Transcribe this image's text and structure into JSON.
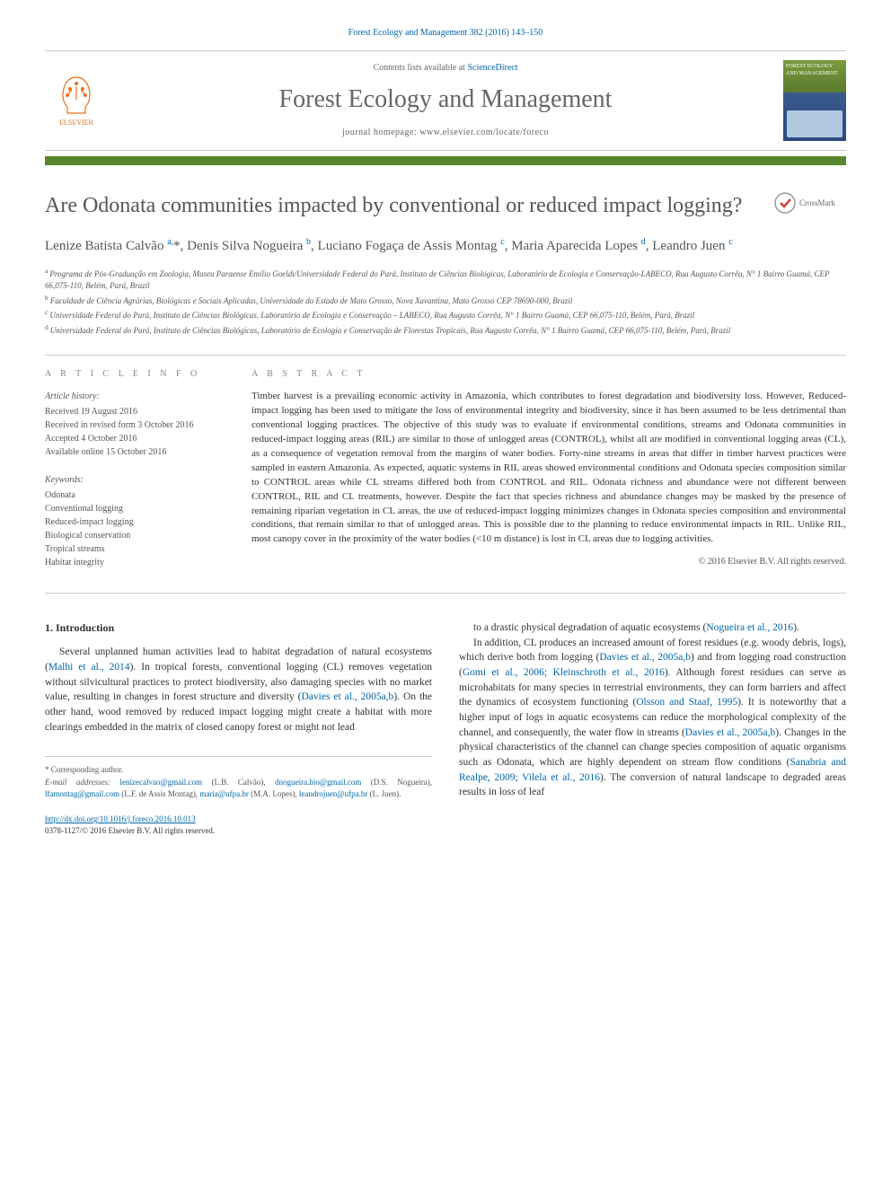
{
  "journal_ref": "Forest Ecology and Management 382 (2016) 143–150",
  "header": {
    "contents_prefix": "Contents lists available at ",
    "contents_link": "ScienceDirect",
    "journal_name": "Forest Ecology and Management",
    "homepage_prefix": "journal homepage: ",
    "homepage_url": "www.elsevier.com/locate/foreco",
    "publisher": "ELSEVIER",
    "cover_title": "FOREST ECOLOGY AND MANAGEMENT"
  },
  "crossmark_label": "CrossMark",
  "title": "Are Odonata communities impacted by conventional or reduced impact logging?",
  "authors_html": "Lenize Batista Calvão <sup>a,</sup>*, Denis Silva Nogueira <sup>b</sup>, Luciano Fogaça de Assis Montag <sup>c</sup>, Maria Aparecida Lopes <sup>d</sup>, Leandro Juen <sup>c</sup>",
  "affiliations": [
    {
      "key": "a",
      "text": "Programa de Pós-Graduação em Zoologia, Museu Paraense Emílio Goeldi/Universidade Federal do Pará, Instituto de Ciências Biológicas, Laboratório de Ecologia e Conservação-LABECO, Rua Augusto Corrêa, N° 1 Bairro Guamá, CEP 66,075-110, Belém, Pará, Brazil"
    },
    {
      "key": "b",
      "text": "Faculdade de Ciência Agrárias, Biológicas e Sociais Aplicadas, Universidade do Estado de Mato Grosso, Nova Xavantina, Mato Grosso CEP 78690-000, Brazil"
    },
    {
      "key": "c",
      "text": "Universidade Federal do Pará, Instituto de Ciências Biológicas, Laboratório de Ecologia e Conservação – LABECO, Rua Augusto Corrêa, N° 1 Bairro Guamá, CEP 66,075-110, Belém, Pará, Brazil"
    },
    {
      "key": "d",
      "text": "Universidade Federal do Pará, Instituto de Ciências Biológicas, Laboratório de Ecologia e Conservação de Florestas Tropicais, Rua Augusto Corrêa, N° 1 Bairro Guamá, CEP 66,075-110, Belém, Pará, Brazil"
    }
  ],
  "info": {
    "heading_info": "A R T I C L E   I N F O",
    "heading_abstract": "A B S T R A C T",
    "history_label": "Article history:",
    "history": [
      "Received 19 August 2016",
      "Received in revised form 3 October 2016",
      "Accepted 4 October 2016",
      "Available online 15 October 2016"
    ],
    "keywords_label": "Keywords:",
    "keywords": [
      "Odonata",
      "Conventional logging",
      "Reduced-impact logging",
      "Biological conservation",
      "Tropical streams",
      "Habitat integrity"
    ]
  },
  "abstract": "Timber harvest is a prevailing economic activity in Amazonia, which contributes to forest degradation and biodiversity loss. However, Reduced-impact logging has been used to mitigate the loss of environmental integrity and biodiversity, since it has been assumed to be less detrimental than conventional logging practices. The objective of this study was to evaluate if environmental conditions, streams and Odonata communities in reduced-impact logging areas (RIL) are similar to those of unlogged areas (CONTROL), whilst all are modified in conventional logging areas (CL), as a consequence of vegetation removal from the margins of water bodies. Forty-nine streams in areas that differ in timber harvest practices were sampled in eastern Amazonia. As expected, aquatic systems in RIL areas showed environmental conditions and Odonata species composition similar to CONTROL areas while CL streams differed both from CONTROL and RIL. Odonata richness and abundance were not different between CONTROL, RIL and CL treatments, however. Despite the fact that species richness and abundance changes may be masked by the presence of remaining riparian vegetation in CL areas, the use of reduced-impact logging minimizes changes in Odonata species composition and environmental conditions, that remain similar to that of unlogged areas. This is possible due to the planning to reduce environmental impacts in RIL. Unlike RIL, most canopy cover in the proximity of the water bodies (<10 m distance) is lost in CL areas due to logging activities.",
  "copyright": "© 2016 Elsevier B.V. All rights reserved.",
  "section1": {
    "heading": "1. Introduction",
    "p1_a": "Several unplanned human activities lead to habitat degradation of natural ecosystems (",
    "p1_c1": "Malhi et al., 2014",
    "p1_b": "). In tropical forests, conventional logging (CL) removes vegetation without silvicultural practices to protect biodiversity, also damaging species with no market value, resulting in changes in forest structure and diversity (",
    "p1_c2": "Davies et al., 2005a,b",
    "p1_c": "). On the other hand, wood removed by reduced impact logging might create a habitat with more clearings embedded in the matrix of closed canopy forest or might not lead",
    "p2_a": "to a drastic physical degradation of aquatic ecosystems (",
    "p2_c1": "Nogueira et al., 2016",
    "p2_b": ").",
    "p3_a": "In addition, CL produces an increased amount of forest residues (e.g. woody debris, logs), which derive both from logging (",
    "p3_c1": "Davies et al., 2005a,b",
    "p3_b": ") and from logging road construction (",
    "p3_c2": "Gomi et al., 2006; Kleinschroth et al., 2016",
    "p3_c": "). Although forest residues can serve as microhabitats for many species in terrestrial environments, they can form barriers and affect the dynamics of ecosystem functioning (",
    "p3_c3": "Olsson and Staaf, 1995",
    "p3_d": "). It is noteworthy that a higher input of logs in aquatic ecosystems can reduce the morphological complexity of the channel, and consequently, the water flow in streams (",
    "p3_c4": "Davies et al., 2005a,b",
    "p3_e": "). Changes in the physical characteristics of the channel can change species composition of aquatic organisms such as Odonata, which are highly dependent on stream flow conditions (",
    "p3_c5": "Sanabria and Realpe, 2009; Vilela et al., 2016",
    "p3_f": "). The conversion of natural landscape to degraded areas results in loss of leaf"
  },
  "footer": {
    "corr": "* Corresponding author.",
    "email_label": "E-mail addresses:",
    "emails": [
      {
        "addr": "lenizecalvao@gmail.com",
        "who": "(L.B. Calvão),"
      },
      {
        "addr": "dnogueira.bio@gmail.com",
        "who": "(D.S. Nogueira),"
      },
      {
        "addr": "lfamontag@gmail.com",
        "who": "(L.F. de Assis Montag),"
      },
      {
        "addr": "maria@ufpa.br",
        "who": "(M.A. Lopes),"
      },
      {
        "addr": "leandrojuen@ufpa.br",
        "who": "(L. Juen)."
      }
    ],
    "doi": "http://dx.doi.org/10.1016/j.foreco.2016.10.013",
    "issn_line": "0378-1127/© 2016 Elsevier B.V. All rights reserved."
  },
  "colors": {
    "accent": "#58862e",
    "link": "#0066aa",
    "elsevier": "#e9711c",
    "text": "#333333",
    "muted": "#666666",
    "rule": "#cccccc"
  }
}
